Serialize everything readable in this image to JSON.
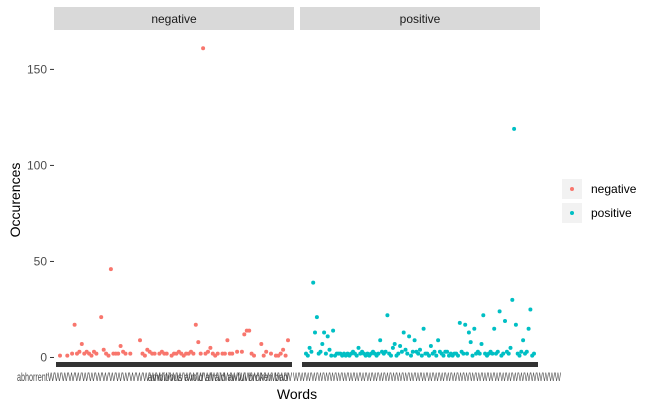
{
  "chart_data": {
    "type": "scatter",
    "facets": [
      "negative",
      "positive"
    ],
    "xlabel": "Words",
    "ylabel": "Occurences",
    "ylim": [
      -6,
      170
    ],
    "yticks": [
      0,
      50,
      100,
      150
    ],
    "grid": false,
    "legend_position": "right",
    "legend": [
      {
        "name": "negative",
        "color": "#F8766D"
      },
      {
        "name": "positive",
        "color": "#00BFC4"
      }
    ],
    "x_tick_labels_note": "",
    "series": [
      {
        "name": "negative",
        "facet": "negative",
        "color": "#F8766D",
        "points": [
          [
            1,
            1
          ],
          [
            4,
            1
          ],
          [
            6,
            2
          ],
          [
            7,
            17
          ],
          [
            8,
            2
          ],
          [
            9,
            3
          ],
          [
            10,
            7
          ],
          [
            11,
            2
          ],
          [
            12,
            3
          ],
          [
            13,
            2
          ],
          [
            14,
            1
          ],
          [
            15,
            3
          ],
          [
            16,
            2
          ],
          [
            18,
            21
          ],
          [
            19,
            4
          ],
          [
            20,
            2
          ],
          [
            21,
            1
          ],
          [
            22,
            46
          ],
          [
            23,
            2
          ],
          [
            24,
            2
          ],
          [
            25,
            2
          ],
          [
            26,
            6
          ],
          [
            27,
            3
          ],
          [
            28,
            2
          ],
          [
            30,
            2
          ],
          [
            34,
            9
          ],
          [
            35,
            2
          ],
          [
            36,
            1
          ],
          [
            37,
            4
          ],
          [
            38,
            3
          ],
          [
            39,
            2
          ],
          [
            40,
            2
          ],
          [
            42,
            2
          ],
          [
            43,
            3
          ],
          [
            44,
            2
          ],
          [
            45,
            2
          ],
          [
            47,
            1
          ],
          [
            48,
            2
          ],
          [
            49,
            2
          ],
          [
            50,
            3
          ],
          [
            51,
            2
          ],
          [
            52,
            1
          ],
          [
            53,
            2
          ],
          [
            54,
            2
          ],
          [
            55,
            3
          ],
          [
            56,
            2
          ],
          [
            57,
            17
          ],
          [
            58,
            8
          ],
          [
            59,
            2
          ],
          [
            60,
            161
          ],
          [
            61,
            2
          ],
          [
            62,
            3
          ],
          [
            63,
            5
          ],
          [
            64,
            2
          ],
          [
            65,
            1
          ],
          [
            66,
            2
          ],
          [
            68,
            2
          ],
          [
            69,
            2
          ],
          [
            70,
            9
          ],
          [
            71,
            2
          ],
          [
            72,
            2
          ],
          [
            74,
            3
          ],
          [
            76,
            3
          ],
          [
            77,
            12
          ],
          [
            78,
            14
          ],
          [
            79,
            14
          ],
          [
            80,
            2
          ],
          [
            81,
            1
          ],
          [
            84,
            7
          ],
          [
            85,
            1
          ],
          [
            86,
            3
          ],
          [
            88,
            2
          ],
          [
            90,
            1
          ],
          [
            91,
            1
          ],
          [
            92,
            2
          ],
          [
            93,
            4
          ],
          [
            94,
            1
          ],
          [
            95,
            9
          ]
        ]
      },
      {
        "name": "positive",
        "facet": "positive",
        "color": "#00BFC4",
        "points": [
          [
            1,
            2
          ],
          [
            2,
            1
          ],
          [
            3,
            5
          ],
          [
            4,
            3
          ],
          [
            5,
            39
          ],
          [
            6,
            13
          ],
          [
            7,
            21
          ],
          [
            8,
            2
          ],
          [
            9,
            3
          ],
          [
            10,
            7
          ],
          [
            11,
            13
          ],
          [
            12,
            2
          ],
          [
            13,
            11
          ],
          [
            14,
            4
          ],
          [
            15,
            1
          ],
          [
            16,
            14
          ],
          [
            17,
            1
          ],
          [
            18,
            2
          ],
          [
            19,
            2
          ],
          [
            20,
            2
          ],
          [
            21,
            1
          ],
          [
            22,
            2
          ],
          [
            23,
            1
          ],
          [
            24,
            2
          ],
          [
            25,
            1
          ],
          [
            26,
            2
          ],
          [
            27,
            3
          ],
          [
            28,
            2
          ],
          [
            29,
            1
          ],
          [
            30,
            5
          ],
          [
            31,
            2
          ],
          [
            32,
            3
          ],
          [
            33,
            2
          ],
          [
            34,
            1
          ],
          [
            35,
            2
          ],
          [
            36,
            1
          ],
          [
            37,
            2
          ],
          [
            38,
            3
          ],
          [
            39,
            2
          ],
          [
            40,
            1
          ],
          [
            41,
            2
          ],
          [
            42,
            9
          ],
          [
            43,
            3
          ],
          [
            44,
            2
          ],
          [
            45,
            3
          ],
          [
            46,
            22
          ],
          [
            47,
            2
          ],
          [
            48,
            1
          ],
          [
            49,
            5
          ],
          [
            50,
            7
          ],
          [
            51,
            1
          ],
          [
            52,
            2
          ],
          [
            53,
            6
          ],
          [
            54,
            3
          ],
          [
            55,
            13
          ],
          [
            56,
            4
          ],
          [
            57,
            2
          ],
          [
            58,
            11
          ],
          [
            59,
            1
          ],
          [
            60,
            3
          ],
          [
            61,
            9
          ],
          [
            62,
            3
          ],
          [
            63,
            2
          ],
          [
            64,
            4
          ],
          [
            65,
            1
          ],
          [
            66,
            15
          ],
          [
            67,
            2
          ],
          [
            68,
            2
          ],
          [
            69,
            1
          ],
          [
            70,
            6
          ],
          [
            71,
            2
          ],
          [
            72,
            3
          ],
          [
            73,
            1
          ],
          [
            74,
            9
          ],
          [
            75,
            3
          ],
          [
            76,
            2
          ],
          [
            77,
            1
          ],
          [
            78,
            3
          ],
          [
            79,
            3
          ],
          [
            80,
            1
          ],
          [
            81,
            2
          ],
          [
            82,
            1
          ],
          [
            83,
            2
          ],
          [
            84,
            2
          ],
          [
            85,
            1
          ],
          [
            86,
            18
          ],
          [
            87,
            3
          ],
          [
            88,
            2
          ],
          [
            89,
            17
          ],
          [
            90,
            2
          ],
          [
            91,
            13
          ],
          [
            92,
            8
          ],
          [
            93,
            1
          ],
          [
            94,
            15
          ],
          [
            95,
            2
          ],
          [
            96,
            3
          ],
          [
            97,
            2
          ],
          [
            98,
            7
          ],
          [
            99,
            22
          ],
          [
            100,
            2
          ],
          [
            101,
            1
          ],
          [
            102,
            2
          ],
          [
            103,
            3
          ],
          [
            104,
            2
          ],
          [
            105,
            15
          ],
          [
            106,
            2
          ],
          [
            107,
            3
          ],
          [
            108,
            24
          ],
          [
            109,
            1
          ],
          [
            110,
            2
          ],
          [
            111,
            19
          ],
          [
            112,
            3
          ],
          [
            113,
            2
          ],
          [
            114,
            5
          ],
          [
            115,
            30
          ],
          [
            116,
            119
          ],
          [
            117,
            17
          ],
          [
            118,
            2
          ],
          [
            119,
            1
          ],
          [
            120,
            3
          ],
          [
            121,
            9
          ],
          [
            122,
            2
          ],
          [
            123,
            3
          ],
          [
            124,
            15
          ],
          [
            125,
            25
          ],
          [
            126,
            1
          ],
          [
            127,
            2
          ]
        ]
      }
    ]
  }
}
